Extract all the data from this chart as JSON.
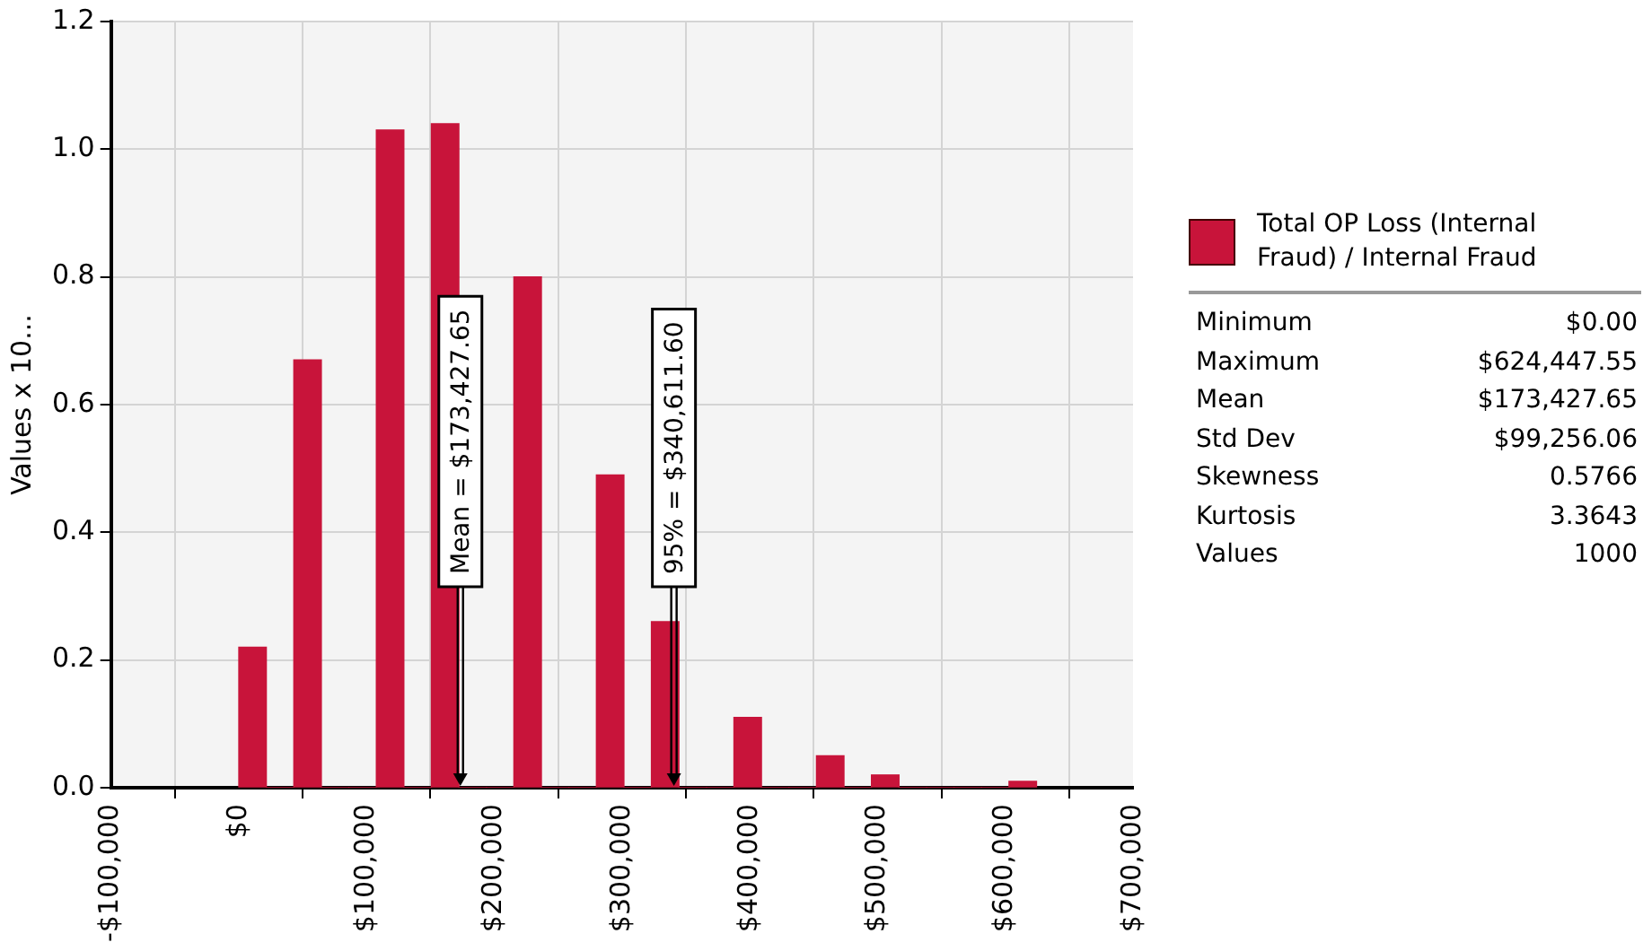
{
  "chart_data": {
    "type": "histogram",
    "ylabel": "Values x 10...",
    "bins": [
      0,
      21533,
      43065,
      64598,
      86131,
      107663,
      129196,
      150729,
      172261,
      193794,
      215327,
      236859,
      258392,
      279925,
      301457,
      322990,
      344523,
      366055,
      387588,
      409121,
      430653,
      452186,
      473719,
      495252,
      516784,
      538317,
      559850,
      581382,
      602915,
      624448
    ],
    "series": [
      {
        "name": "Total OP Loss (Internal Fraud) / Internal Fraud",
        "color": "#c8143a",
        "values": [
          0.22,
          0,
          0.67,
          0,
          0,
          1.03,
          0,
          1.04,
          0,
          0,
          0.8,
          0,
          0,
          0.49,
          0,
          0.26,
          0,
          0,
          0.11,
          0,
          0,
          0.05,
          0,
          0.02,
          0,
          0,
          0,
          0,
          0.01
        ]
      }
    ],
    "xlim": [
      -100000,
      700000
    ],
    "xticks": [
      {
        "value": -100000,
        "label": "-$100,000"
      },
      {
        "value": 0,
        "label": "$0"
      },
      {
        "value": 100000,
        "label": "$100,000"
      },
      {
        "value": 200000,
        "label": "$200,000"
      },
      {
        "value": 300000,
        "label": "$300,000"
      },
      {
        "value": 400000,
        "label": "$400,000"
      },
      {
        "value": 500000,
        "label": "$500,000"
      },
      {
        "value": 600000,
        "label": "$600,000"
      },
      {
        "value": 700000,
        "label": "$700,000"
      }
    ],
    "ylim": [
      0,
      1.2
    ],
    "yticks": [
      {
        "value": 0,
        "label": "0.0"
      },
      {
        "value": 0.2,
        "label": "0.2"
      },
      {
        "value": 0.4,
        "label": "0.4"
      },
      {
        "value": 0.6,
        "label": "0.6"
      },
      {
        "value": 0.8,
        "label": "0.8"
      },
      {
        "value": 1,
        "label": "1.0"
      },
      {
        "value": 1.2,
        "label": "1.2"
      }
    ],
    "grid": true,
    "legend": "right",
    "ref_lines": [
      {
        "axis": "x",
        "value": 173427.65,
        "label": "Mean = $173,427.65"
      },
      {
        "axis": "x",
        "value": 340611.6,
        "label": "95% = $340,611.60"
      }
    ],
    "annotations": [
      "Minimum $0.00",
      "Maximum $624,447.55",
      "Mean $173,427.65",
      "Std Dev $99,256.06",
      "Skewness 0.5766",
      "Kurtosis 3.3643",
      "Values 1000"
    ]
  }
}
